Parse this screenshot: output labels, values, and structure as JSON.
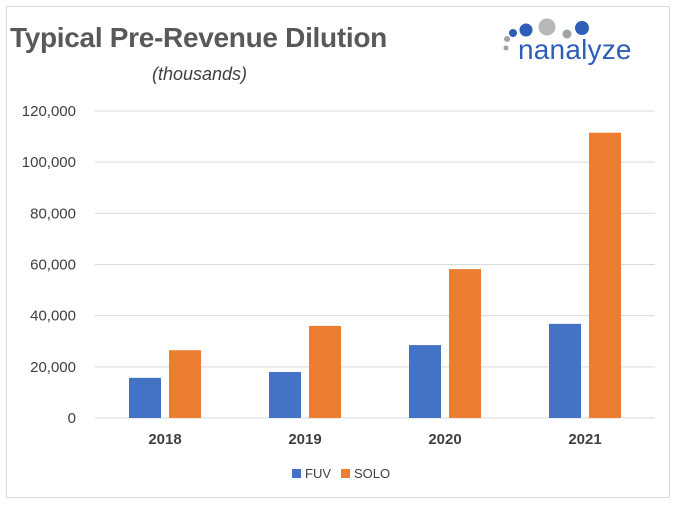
{
  "header": {
    "title": "Typical Pre-Revenue Dilution",
    "subtitle": "(thousands)"
  },
  "logo": {
    "text": "nanalyze"
  },
  "colors": {
    "fuv": "#4472c4",
    "solo": "#ed7d31",
    "grid": "#d9d9d9"
  },
  "chart_data": {
    "type": "bar",
    "title": "Typical Pre-Revenue Dilution",
    "subtitle": "(thousands)",
    "xlabel": "",
    "ylabel": "",
    "categories": [
      "2018",
      "2019",
      "2020",
      "2021"
    ],
    "series": [
      {
        "name": "FUV",
        "values": [
          15700,
          18000,
          28500,
          36800
        ]
      },
      {
        "name": "SOLO",
        "values": [
          26500,
          36000,
          58200,
          111500
        ]
      }
    ],
    "ylim": [
      0,
      120000
    ],
    "yticks": [
      0,
      20000,
      40000,
      60000,
      80000,
      100000,
      120000
    ],
    "ytick_labels": [
      "0",
      "20,000",
      "40,000",
      "60,000",
      "80,000",
      "100,000",
      "120,000"
    ],
    "grid": true,
    "legend": "bottom-center"
  }
}
